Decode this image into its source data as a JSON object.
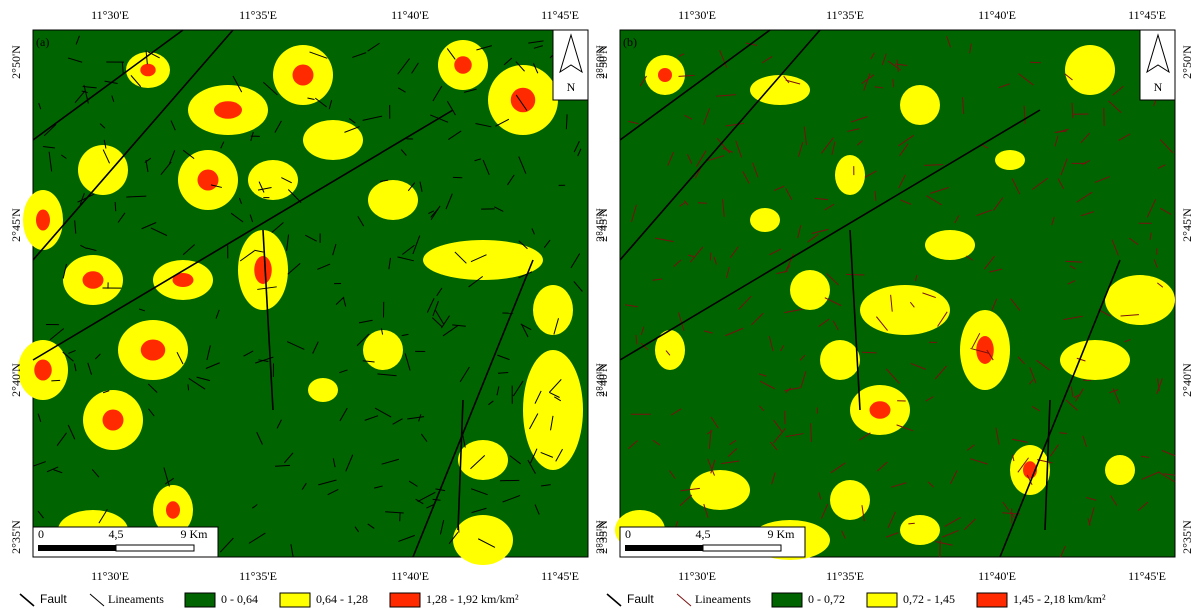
{
  "panels": [
    {
      "label": "(a)",
      "top_labels": [
        "11°30'E",
        "11°35'E",
        "11°40'E",
        "11°45'E"
      ],
      "bottom_labels": [
        "11°30'E",
        "11°35'E",
        "11°40'E",
        "11°45'E"
      ],
      "left_labels": [
        "2°50'N",
        "2°45'N",
        "2°40'N",
        "2°35'N"
      ],
      "right_labels": [
        "2°50'N",
        "2°45'N",
        "2°40'N",
        "2°35'N"
      ],
      "scale": [
        "0",
        "4,5",
        "9 Km"
      ],
      "north": "N",
      "legend": {
        "fault": "Fault",
        "lineaments": "Lineaments",
        "classes": [
          {
            "label": "0 - 0,64",
            "color": "#006400"
          },
          {
            "label": "0,64 - 1,28",
            "color": "#ffff00"
          },
          {
            "label": "1,28 - 1,92 km/km²",
            "color": "#ff2a00"
          }
        ]
      }
    },
    {
      "label": "(b)",
      "top_labels": [
        "11°30'E",
        "11°35'E",
        "11°40'E",
        "11°45'E"
      ],
      "bottom_labels": [
        "11°30'E",
        "11°35'E",
        "11°40'E",
        "11°45'E"
      ],
      "left_labels": [
        "2°50'N",
        "2°45'N",
        "2°40'N",
        "2°35'N"
      ],
      "right_labels": [
        "2°50'N",
        "2°45'N",
        "2°40'N",
        "2°35'N"
      ],
      "scale": [
        "0",
        "4,5",
        "9 Km"
      ],
      "north": "N",
      "legend": {
        "fault": "Fault",
        "lineaments": "Lineaments",
        "classes": [
          {
            "label": "0 - 0,72",
            "color": "#006400"
          },
          {
            "label": "0,72 - 1,45",
            "color": "#ffff00"
          },
          {
            "label": "1,45 - 2,18 km/km²",
            "color": "#ff2a00"
          }
        ]
      }
    }
  ]
}
